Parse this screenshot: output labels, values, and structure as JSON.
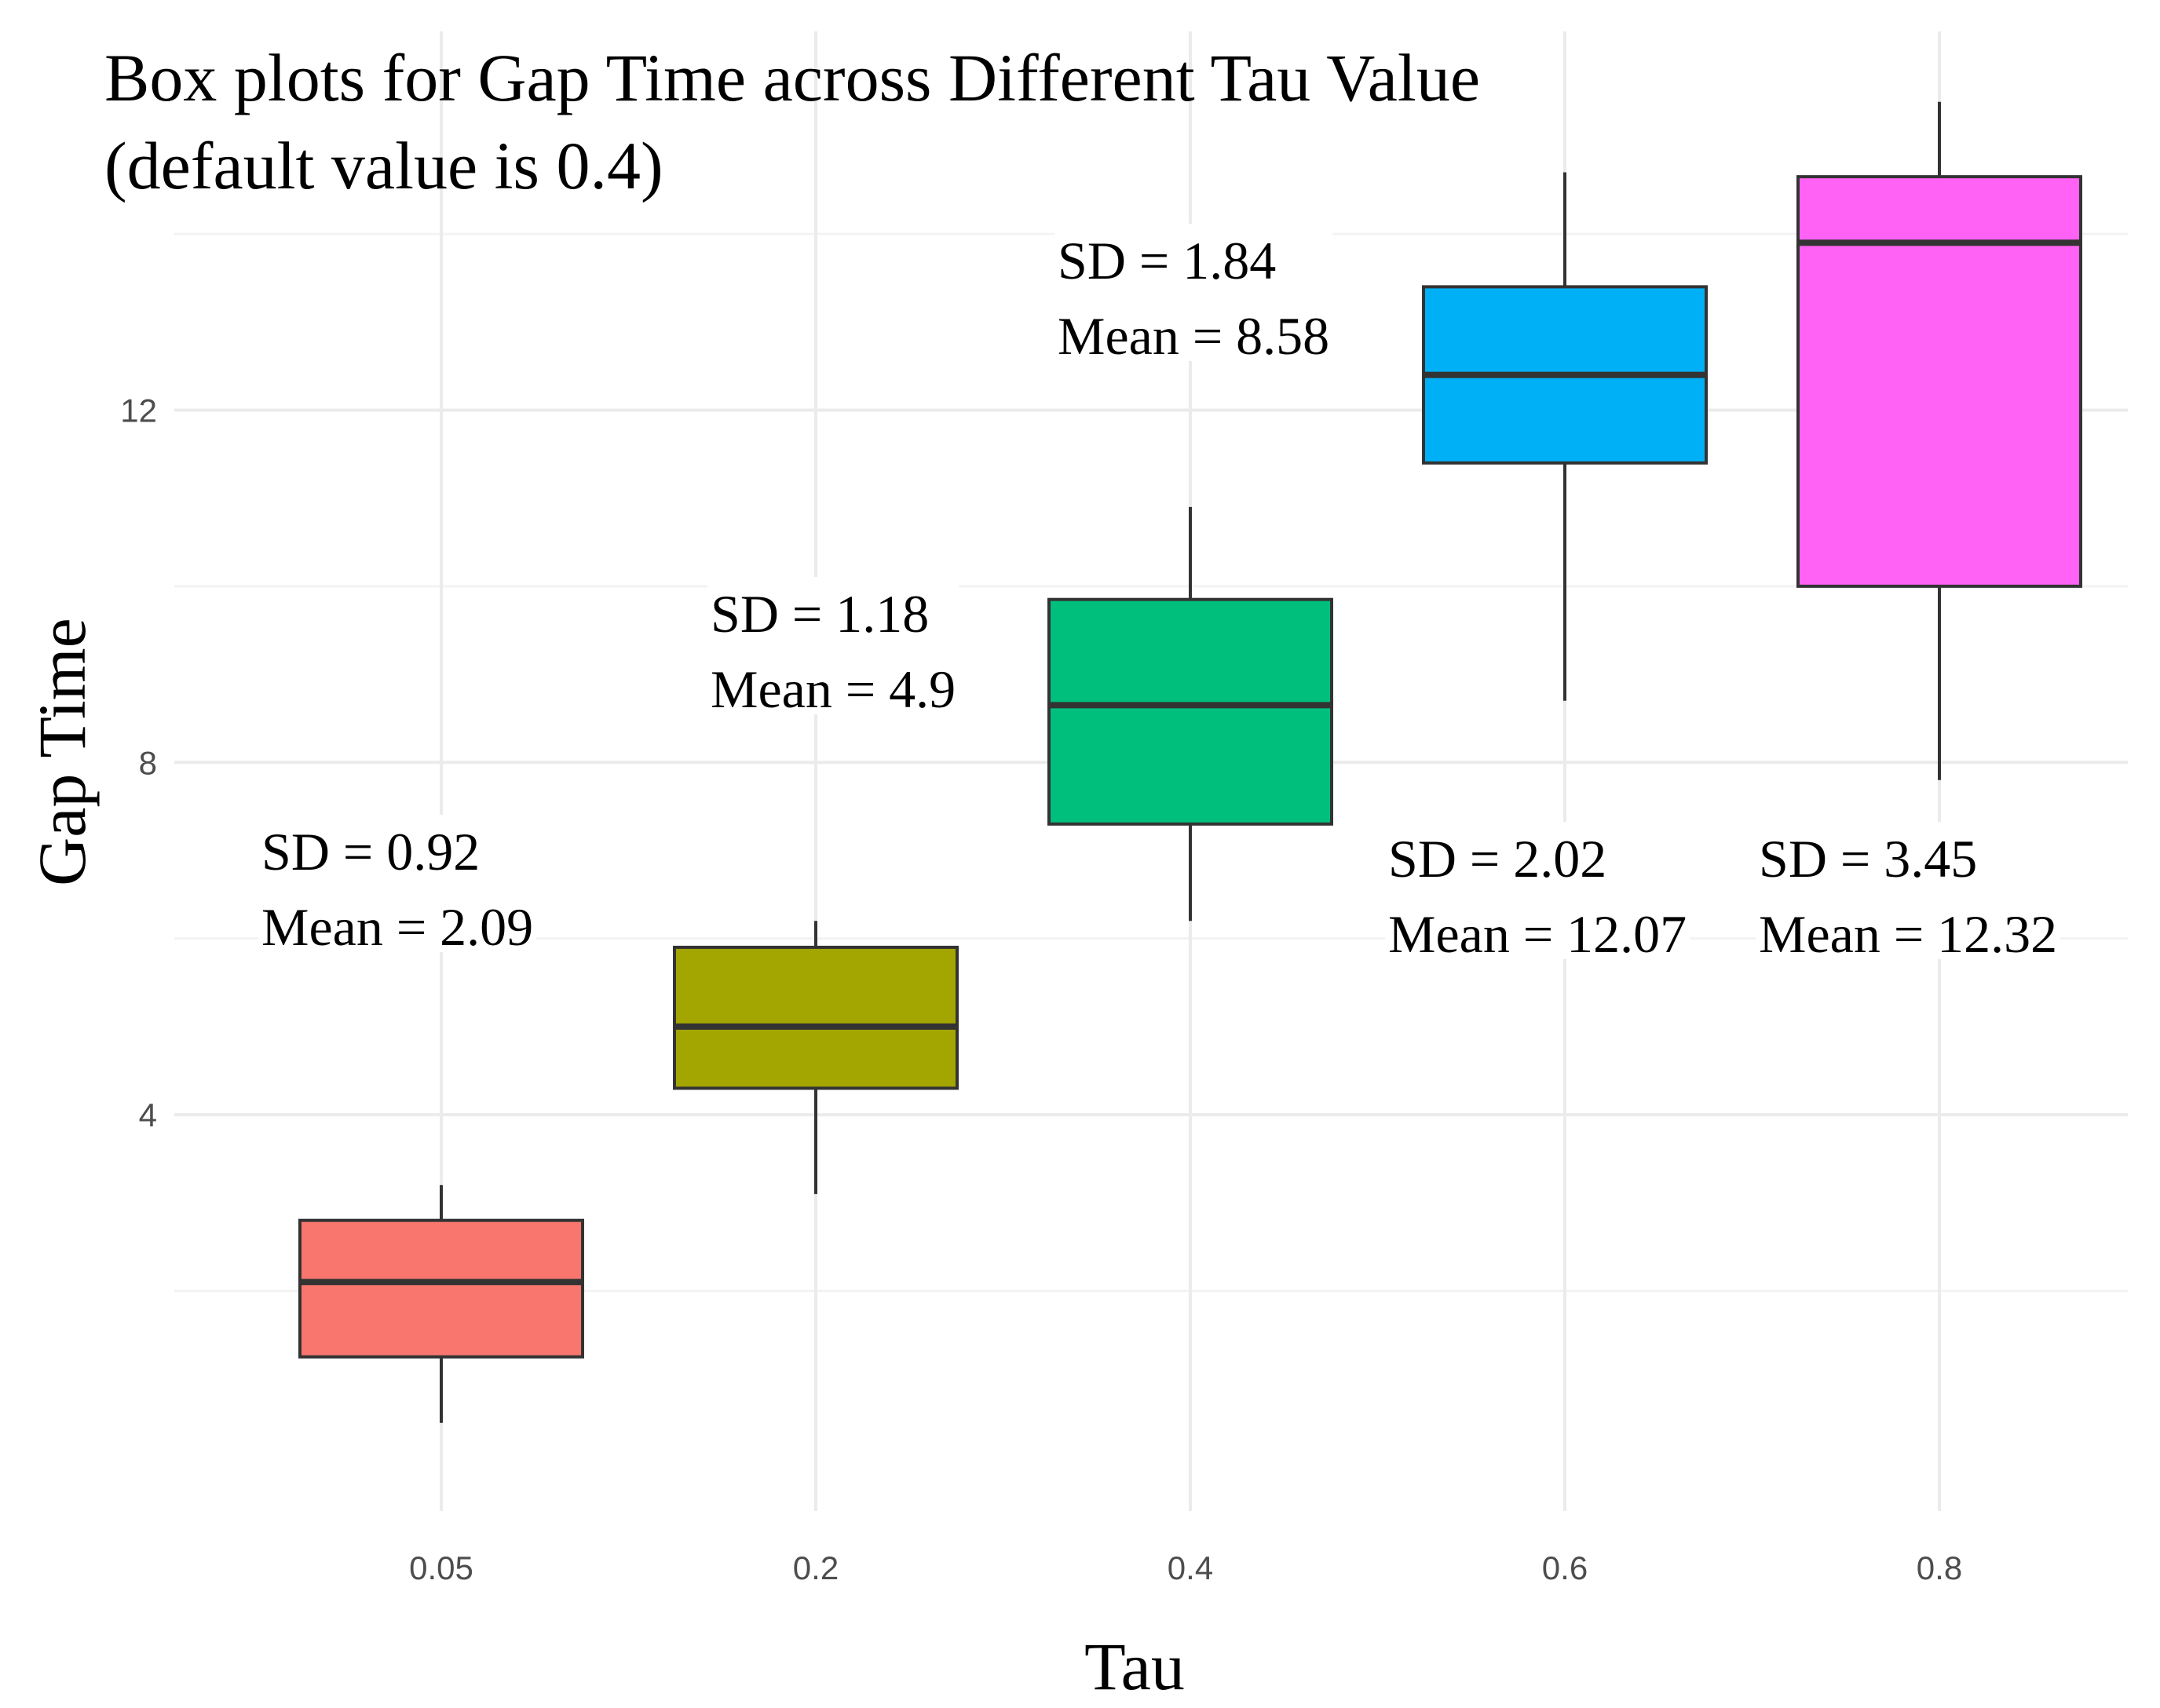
{
  "chart_data": {
    "type": "box",
    "title": "Box plots for Gap Time across Different Tau Value",
    "subtitle": "(default value is 0.4)",
    "xlabel": "Tau",
    "ylabel": "Gap Time",
    "ylim": [
      -0.5,
      16.3
    ],
    "yticks": [
      4,
      8,
      12
    ],
    "grid": true,
    "categories": [
      "0.05",
      "0.2",
      "0.4",
      "0.6",
      "0.8"
    ],
    "boxes": [
      {
        "category": "0.05",
        "min": 0.5,
        "q1": 1.25,
        "median": 2.1,
        "q3": 2.8,
        "max": 3.2,
        "color": "#F8766D",
        "sd_label": "SD = 0.92",
        "mean_label": "Mean = 2.09"
      },
      {
        "category": "0.2",
        "min": 3.1,
        "q1": 4.3,
        "median": 5.0,
        "q3": 5.9,
        "max": 6.2,
        "color": "#A3A500",
        "sd_label": "SD = 1.18",
        "mean_label": "Mean = 4.9"
      },
      {
        "category": "0.4",
        "min": 6.2,
        "q1": 7.3,
        "median": 8.65,
        "q3": 9.85,
        "max": 10.9,
        "color": "#00BF7D",
        "sd_label": "SD = 1.84",
        "mean_label": "Mean = 8.58"
      },
      {
        "category": "0.6",
        "min": 8.7,
        "q1": 11.4,
        "median": 12.4,
        "q3": 13.4,
        "max": 14.7,
        "color": "#00B0F6",
        "sd_label": "SD = 2.02",
        "mean_label": "Mean = 12.07"
      },
      {
        "category": "0.8",
        "min": 7.8,
        "q1": 10.0,
        "median": 13.9,
        "q3": 14.65,
        "max": 15.5,
        "color": "#FF62F5",
        "sd_label": "SD = 3.45",
        "mean_label": "Mean = 12.32"
      }
    ]
  }
}
